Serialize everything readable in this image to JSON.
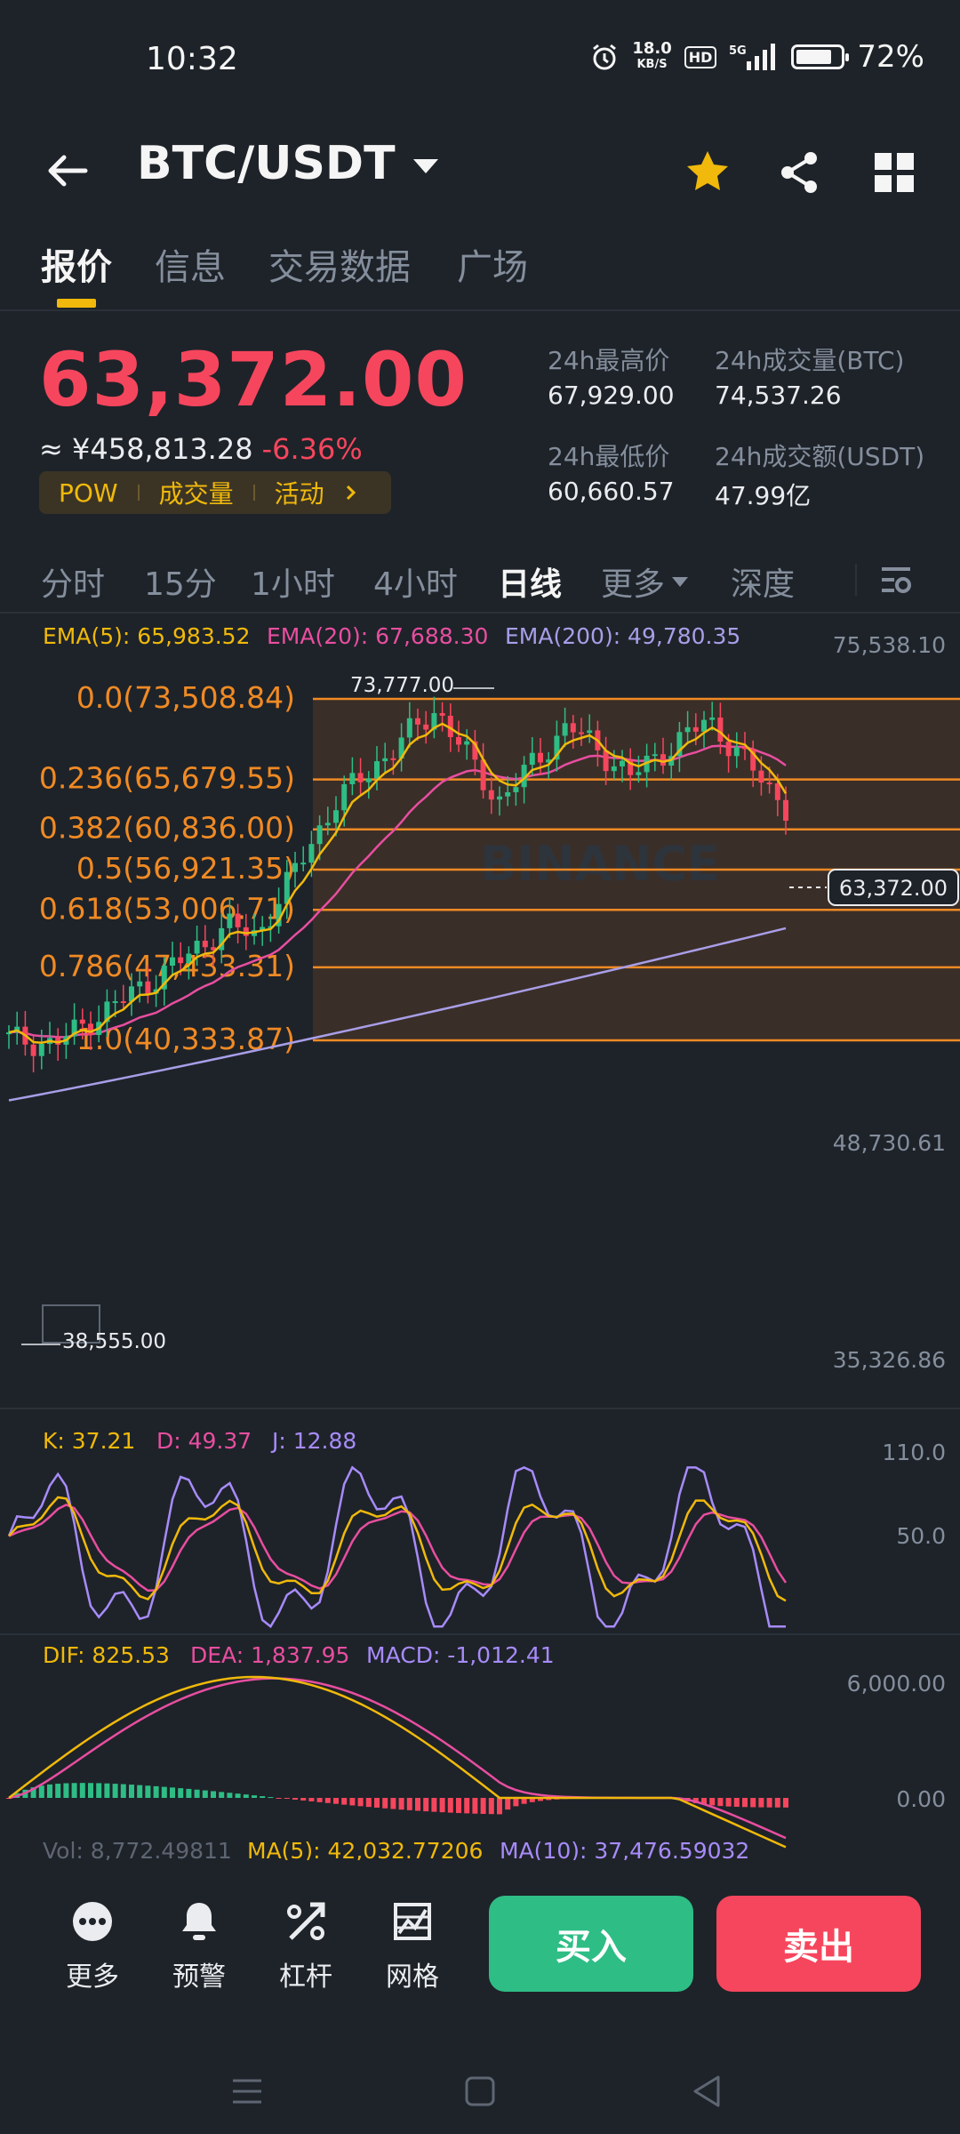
{
  "status_bar": {
    "time": "10:32",
    "speed_value": "18.0",
    "speed_unit": "KB/S",
    "hd": "HD",
    "network": "5G",
    "battery_level": 0.72,
    "battery_text": "72%"
  },
  "header": {
    "pair": "BTC/USDT",
    "icons": [
      "back-arrow-icon",
      "star-icon",
      "share-icon",
      "grid-icon"
    ],
    "star_color": "#f0b90b"
  },
  "tabs": [
    "报价",
    "信息",
    "交易数据",
    "广场"
  ],
  "active_tab": "报价",
  "ticker": {
    "last_price": "63,372.00",
    "cny_price": "≈ ¥458,813.28",
    "change_pct": "-6.36%",
    "tags": [
      "POW",
      "成交量",
      "活动"
    ],
    "high_label": "24h最高价",
    "high_value": "67,929.00",
    "low_label": "24h最低价",
    "low_value": "60,660.57",
    "vol_btc_label": "24h成交量(BTC)",
    "vol_btc_value": "74,537.26",
    "vol_usdt_label": "24h成交额(USDT)",
    "vol_usdt_value": "47.99亿"
  },
  "timeframes": [
    "分时",
    "15分",
    "1小时",
    "4小时",
    "日线",
    "更多",
    "深度"
  ],
  "active_timeframe": "日线",
  "chart": {
    "ema_legend": {
      "ema5": "EMA(5): 65,983.52",
      "ema20": "EMA(20): 67,688.30",
      "ema200": "EMA(200): 49,780.35"
    },
    "price_axis": {
      "top": "75,538.10",
      "mid": "48,730.61",
      "bottom": "35,326.86"
    },
    "high_label": "73,777.00",
    "low_label": "38,555.00",
    "current_price_tag": "63,372.00",
    "watermark": "BINANCE",
    "fib_levels": [
      {
        "label": "0.0(73,508.84)",
        "price": 73508.84
      },
      {
        "label": "0.236(65,679.55)",
        "price": 65679.55
      },
      {
        "label": "0.382(60,836.00)",
        "price": 60836.0
      },
      {
        "label": "0.5(56,921.35)",
        "price": 56921.35
      },
      {
        "label": "0.618(53,006.71)",
        "price": 53006.71
      },
      {
        "label": "0.786(47,433.31)",
        "price": 47433.31
      },
      {
        "label": "1.0(40,333.87)",
        "price": 40333.87
      }
    ],
    "kdj_legend": {
      "k": "K: 37.21",
      "d": "D: 49.37",
      "j": "J: 12.88"
    },
    "kdj_axis": {
      "top": "110.0",
      "mid": "50.0"
    },
    "macd_legend": {
      "dif": "DIF: 825.53",
      "dea": "DEA: 1,837.95",
      "macd": "MACD: -1,012.41"
    },
    "macd_axis": {
      "top": "6,000.00",
      "zero": "0.00"
    },
    "vol_legend": {
      "vol": "Vol: 8,772.49811",
      "ma5": "MA(5): 42,032.77206",
      "ma10": "MA(10): 37,476.59032"
    },
    "colors": {
      "up": "#2ebd85",
      "down": "#f6465d",
      "ema5": "#f0b90b",
      "ema20": "#e84ea0",
      "ema200": "#a89ee8",
      "fib": "#f08a24"
    }
  },
  "bottom_bar": {
    "items": [
      "更多",
      "预警",
      "杠杆",
      "网格"
    ],
    "buy": "买入",
    "sell": "卖出"
  }
}
